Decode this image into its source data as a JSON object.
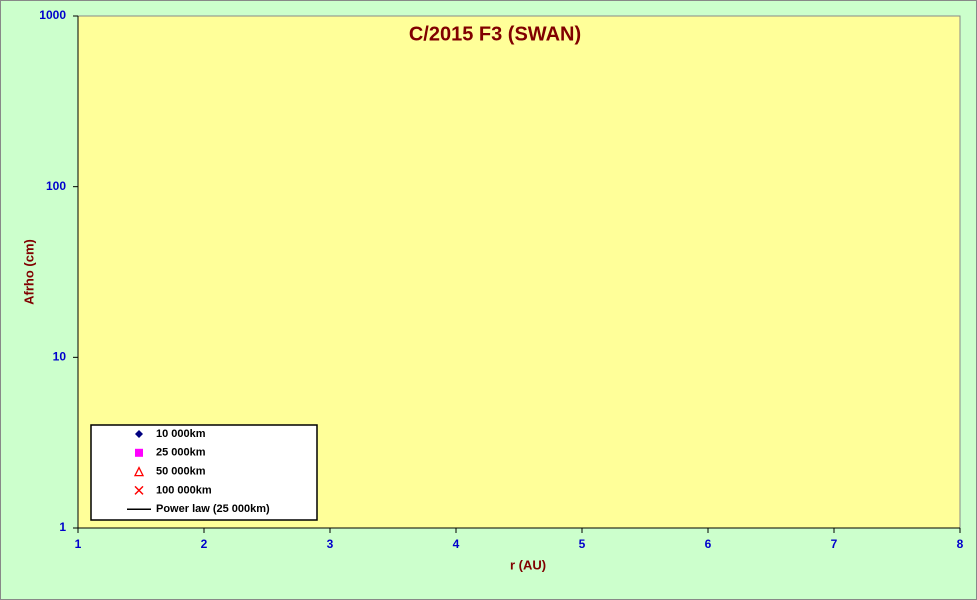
{
  "chart_data": {
    "type": "scatter",
    "title": "C/2015 F3 (SWAN)",
    "x_label": "r (AU)",
    "y_label": "Afrho (cm)",
    "xlim": [
      1,
      8
    ],
    "xticks": [
      1,
      2,
      3,
      4,
      5,
      6,
      7,
      8
    ],
    "ylim": [
      1,
      1000
    ],
    "yticks": [
      1,
      10,
      100,
      1000
    ],
    "y_log": true,
    "legend": "lower left",
    "series": [
      {
        "name": "10 000km",
        "color": "#000080",
        "marker": "diamond",
        "x": [],
        "values": []
      },
      {
        "name": "25 000km",
        "color": "#ff00ff",
        "marker": "square",
        "x": [],
        "values": []
      },
      {
        "name": "50 000km",
        "color": "#ff0000",
        "marker": "triangle",
        "x": [],
        "values": []
      },
      {
        "name": "100 000km",
        "color": "#ff0000",
        "marker": "cross",
        "x": [],
        "values": []
      },
      {
        "name": "Power law (25 000km)",
        "color": "#000000",
        "marker": "line",
        "x": [],
        "values": []
      }
    ]
  }
}
